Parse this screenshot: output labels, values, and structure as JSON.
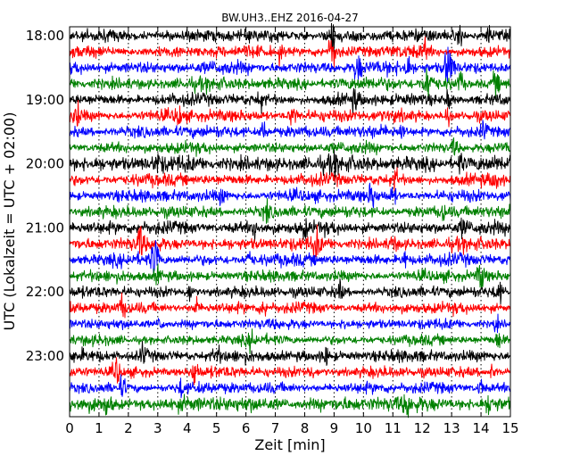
{
  "chart_data": {
    "type": "line",
    "title": "BW.UH3..EHZ 2016-04-27",
    "xlabel": "Zeit  [min]",
    "ylabel": "UTC (Lokalzeit = UTC + 02:00)",
    "xlim": [
      0,
      15
    ],
    "x_ticks": [
      "0",
      "1",
      "2",
      "3",
      "4",
      "5",
      "6",
      "7",
      "8",
      "9",
      "10",
      "11",
      "12",
      "13",
      "14",
      "15"
    ],
    "y_ticks": [
      "18:00",
      "19:00",
      "20:00",
      "21:00",
      "22:00",
      "23:00"
    ],
    "grid": "vertical dotted lines at each minute",
    "colors": [
      "#000000",
      "#ff0000",
      "#0000ff",
      "#008000"
    ],
    "series": [
      {
        "start": "18:00",
        "color": "#000000",
        "amplitude": 0.3,
        "bursts": [
          [
            8.95,
            1.0
          ],
          [
            13.3,
            0.45
          ],
          [
            14.3,
            0.5
          ]
        ]
      },
      {
        "start": "18:15",
        "color": "#ff0000",
        "amplitude": 0.3,
        "bursts": [
          [
            7.2,
            0.55
          ],
          [
            8.95,
            0.9
          ],
          [
            12.1,
            0.4
          ]
        ]
      },
      {
        "start": "18:30",
        "color": "#0000ff",
        "amplitude": 0.32,
        "bursts": [
          [
            9.8,
            0.75
          ],
          [
            11.5,
            0.55
          ],
          [
            12.9,
            1.2
          ]
        ]
      },
      {
        "start": "18:45",
        "color": "#008000",
        "amplitude": 0.32,
        "bursts": [
          [
            12.2,
            0.9
          ],
          [
            13.3,
            0.5
          ],
          [
            14.5,
            0.6
          ]
        ]
      },
      {
        "start": "19:00",
        "color": "#000000",
        "amplitude": 0.3,
        "bursts": [
          [
            6.5,
            0.4
          ],
          [
            9.7,
            0.45
          ],
          [
            12.9,
            0.5
          ]
        ]
      },
      {
        "start": "19:15",
        "color": "#ff0000",
        "amplitude": 0.3,
        "bursts": [
          [
            0.25,
            0.55
          ],
          [
            3.7,
            0.55
          ],
          [
            7.6,
            0.6
          ],
          [
            12.9,
            0.55
          ]
        ]
      },
      {
        "start": "19:30",
        "color": "#0000ff",
        "amplitude": 0.3,
        "bursts": [
          [
            6.6,
            0.5
          ],
          [
            11.3,
            0.4
          ],
          [
            14.1,
            0.45
          ]
        ]
      },
      {
        "start": "19:45",
        "color": "#008000",
        "amplitude": 0.28,
        "bursts": [
          [
            13.1,
            0.4
          ]
        ]
      },
      {
        "start": "20:00",
        "color": "#000000",
        "amplitude": 0.4,
        "bursts": [
          [
            3.0,
            0.4
          ],
          [
            9.0,
            0.45
          ],
          [
            13.3,
            0.45
          ]
        ]
      },
      {
        "start": "20:15",
        "color": "#ff0000",
        "amplitude": 0.3,
        "bursts": [
          [
            11.1,
            0.45
          ],
          [
            14.5,
            0.45
          ]
        ]
      },
      {
        "start": "20:30",
        "color": "#0000ff",
        "amplitude": 0.3,
        "bursts": [
          [
            5.2,
            0.4
          ],
          [
            10.3,
            0.7
          ],
          [
            11.0,
            0.45
          ]
        ]
      },
      {
        "start": "20:45",
        "color": "#008000",
        "amplitude": 0.3,
        "bursts": [
          [
            6.7,
            0.45
          ],
          [
            12.7,
            0.35
          ]
        ]
      },
      {
        "start": "21:00",
        "color": "#000000",
        "amplitude": 0.32,
        "bursts": [
          [
            6.3,
            0.45
          ],
          [
            8.0,
            0.35
          ],
          [
            13.4,
            0.45
          ]
        ]
      },
      {
        "start": "21:15",
        "color": "#ff0000",
        "amplitude": 0.32,
        "bursts": [
          [
            2.4,
            0.75
          ],
          [
            8.4,
            0.7
          ],
          [
            11.0,
            0.35
          ]
        ]
      },
      {
        "start": "21:30",
        "color": "#0000ff",
        "amplitude": 0.3,
        "bursts": [
          [
            2.9,
            1.0
          ],
          [
            6.1,
            0.4
          ],
          [
            11.4,
            0.45
          ]
        ]
      },
      {
        "start": "21:45",
        "color": "#008000",
        "amplitude": 0.28,
        "bursts": [
          [
            3.0,
            0.4
          ],
          [
            14.0,
            0.7
          ]
        ]
      },
      {
        "start": "22:00",
        "color": "#000000",
        "amplitude": 0.28,
        "bursts": [
          [
            4.1,
            0.45
          ],
          [
            9.2,
            0.45
          ],
          [
            14.6,
            0.55
          ]
        ]
      },
      {
        "start": "22:15",
        "color": "#ff0000",
        "amplitude": 0.28,
        "bursts": [
          [
            1.8,
            0.55
          ],
          [
            4.3,
            0.4
          ],
          [
            6.6,
            0.45
          ]
        ]
      },
      {
        "start": "22:30",
        "color": "#0000ff",
        "amplitude": 0.25,
        "bursts": [
          [
            3.1,
            0.4
          ],
          [
            9.4,
            0.35
          ],
          [
            14.5,
            0.35
          ]
        ]
      },
      {
        "start": "22:45",
        "color": "#008000",
        "amplitude": 0.25,
        "bursts": [
          [
            6.2,
            0.45
          ],
          [
            14.6,
            0.45
          ]
        ]
      },
      {
        "start": "23:00",
        "color": "#000000",
        "amplitude": 0.3,
        "bursts": [
          [
            2.5,
            0.55
          ],
          [
            5.0,
            0.45
          ],
          [
            8.7,
            0.45
          ]
        ]
      },
      {
        "start": "23:15",
        "color": "#ff0000",
        "amplitude": 0.28,
        "bursts": [
          [
            1.6,
            0.75
          ],
          [
            4.25,
            0.75
          ],
          [
            8.2,
            0.35
          ],
          [
            14.4,
            0.35
          ]
        ]
      },
      {
        "start": "23:30",
        "color": "#0000ff",
        "amplitude": 0.28,
        "bursts": [
          [
            1.8,
            0.45
          ],
          [
            3.8,
            0.4
          ],
          [
            14.0,
            0.45
          ]
        ]
      },
      {
        "start": "23:45",
        "color": "#008000",
        "amplitude": 0.38,
        "bursts": [
          [
            1.3,
            0.45
          ],
          [
            11.5,
            0.5
          ],
          [
            14.3,
            0.5
          ]
        ]
      }
    ]
  }
}
